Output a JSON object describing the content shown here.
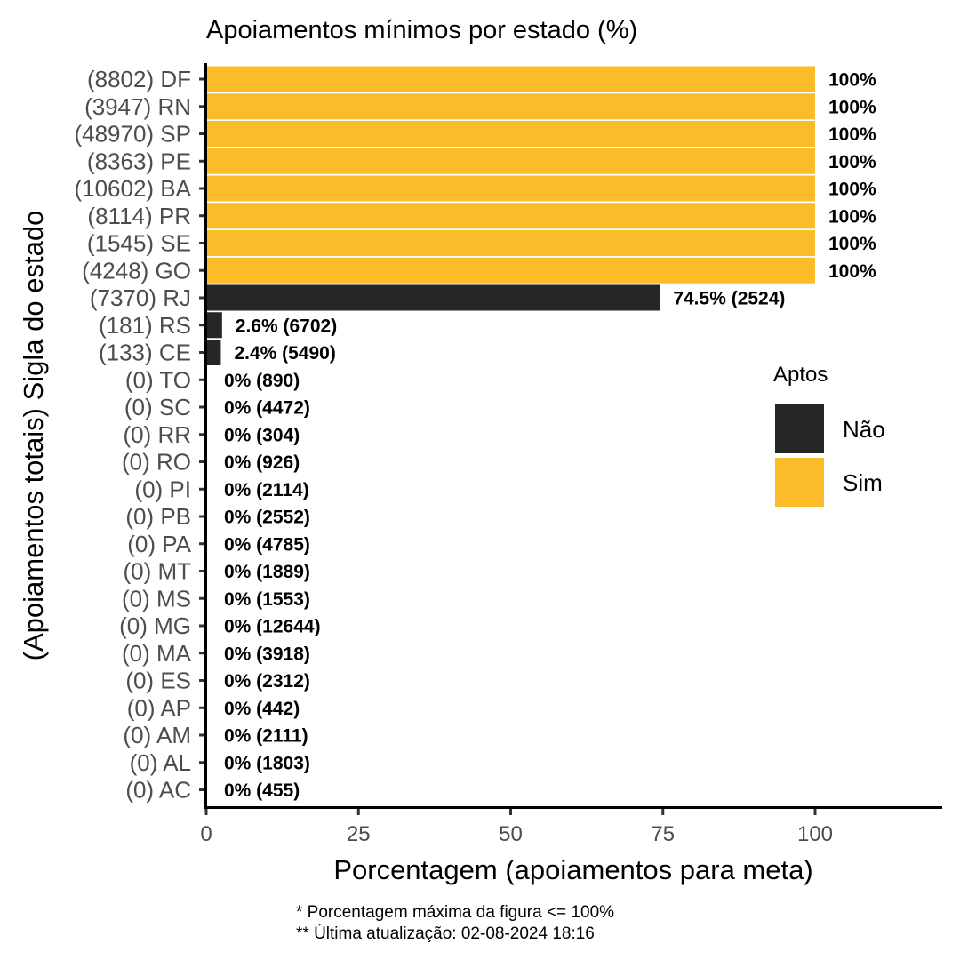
{
  "chart_data": {
    "type": "bar",
    "orientation": "horizontal",
    "title": "Apoiamentos mínimos por estado (%)",
    "xlabel": "Porcentagem (apoiamentos para meta)",
    "ylabel": "(Apoiamentos totais) Sigla do estado",
    "xlim": [
      0,
      120
    ],
    "xticks": [
      "0",
      "25",
      "50",
      "75",
      "100"
    ],
    "xtick_values": [
      0,
      25,
      50,
      75,
      100
    ],
    "grid": false,
    "legend": {
      "title": "Aptos",
      "placement": "right",
      "entries": [
        {
          "label": "Não",
          "color": "#262626"
        },
        {
          "label": "Sim",
          "color": "#fbbc2a"
        }
      ]
    },
    "bars": [
      {
        "category": "(8802) DF",
        "value": 100,
        "apto": "Sim",
        "label": "100%"
      },
      {
        "category": "(3947) RN",
        "value": 100,
        "apto": "Sim",
        "label": "100%"
      },
      {
        "category": "(48970) SP",
        "value": 100,
        "apto": "Sim",
        "label": "100%"
      },
      {
        "category": "(8363) PE",
        "value": 100,
        "apto": "Sim",
        "label": "100%"
      },
      {
        "category": "(10602) BA",
        "value": 100,
        "apto": "Sim",
        "label": "100%"
      },
      {
        "category": "(8114) PR",
        "value": 100,
        "apto": "Sim",
        "label": "100%"
      },
      {
        "category": "(1545) SE",
        "value": 100,
        "apto": "Sim",
        "label": "100%"
      },
      {
        "category": "(4248) GO",
        "value": 100,
        "apto": "Sim",
        "label": "100%"
      },
      {
        "category": "(7370) RJ",
        "value": 74.5,
        "apto": "Não",
        "label": "74.5% (2524)"
      },
      {
        "category": "(181) RS",
        "value": 2.6,
        "apto": "Não",
        "label": "2.6% (6702)"
      },
      {
        "category": "(133) CE",
        "value": 2.4,
        "apto": "Não",
        "label": "2.4% (5490)"
      },
      {
        "category": "(0) TO",
        "value": 0,
        "apto": "Não",
        "label": "0% (890)"
      },
      {
        "category": "(0) SC",
        "value": 0,
        "apto": "Não",
        "label": "0% (4472)"
      },
      {
        "category": "(0) RR",
        "value": 0,
        "apto": "Não",
        "label": "0% (304)"
      },
      {
        "category": "(0) RO",
        "value": 0,
        "apto": "Não",
        "label": "0% (926)"
      },
      {
        "category": "(0) PI",
        "value": 0,
        "apto": "Não",
        "label": "0% (2114)"
      },
      {
        "category": "(0) PB",
        "value": 0,
        "apto": "Não",
        "label": "0% (2552)"
      },
      {
        "category": "(0) PA",
        "value": 0,
        "apto": "Não",
        "label": "0% (4785)"
      },
      {
        "category": "(0) MT",
        "value": 0,
        "apto": "Não",
        "label": "0% (1889)"
      },
      {
        "category": "(0) MS",
        "value": 0,
        "apto": "Não",
        "label": "0% (1553)"
      },
      {
        "category": "(0) MG",
        "value": 0,
        "apto": "Não",
        "label": "0% (12644)"
      },
      {
        "category": "(0) MA",
        "value": 0,
        "apto": "Não",
        "label": "0% (3918)"
      },
      {
        "category": "(0) ES",
        "value": 0,
        "apto": "Não",
        "label": "0% (2312)"
      },
      {
        "category": "(0) AP",
        "value": 0,
        "apto": "Não",
        "label": "0% (442)"
      },
      {
        "category": "(0) AM",
        "value": 0,
        "apto": "Não",
        "label": "0% (2111)"
      },
      {
        "category": "(0) AL",
        "value": 0,
        "apto": "Não",
        "label": "0% (1803)"
      },
      {
        "category": "(0) AC",
        "value": 0,
        "apto": "Não",
        "label": "0% (455)"
      }
    ],
    "captions": [
      "* Porcentagem máxima da figura <= 100%",
      "** Última atualização: 02-08-2024 18:16"
    ]
  }
}
